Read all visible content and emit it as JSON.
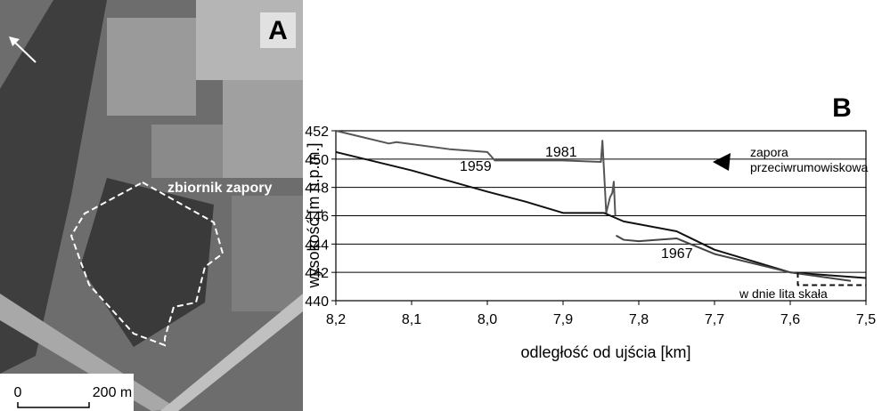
{
  "photo": {
    "label": "A",
    "annotation": "zbiornik zapory",
    "scale_start": "0",
    "scale_end": "200 m"
  },
  "chart_data": {
    "type": "line",
    "label": "B",
    "x_label": "odległość od ujścia [km]",
    "y_label": "wysokość [m n.p.m.]",
    "xlim": [
      8.2,
      7.5
    ],
    "xticks": [
      {
        "value": 8.2,
        "label": "8,2"
      },
      {
        "value": 8.1,
        "label": "8,1"
      },
      {
        "value": 8.0,
        "label": "8,0"
      },
      {
        "value": 7.9,
        "label": "7,9"
      },
      {
        "value": 7.8,
        "label": "7,8"
      },
      {
        "value": 7.7,
        "label": "7,7"
      },
      {
        "value": 7.6,
        "label": "7,6"
      },
      {
        "value": 7.5,
        "label": "7,5"
      }
    ],
    "ylim": [
      440,
      452
    ],
    "yticks": [
      440,
      442,
      444,
      446,
      448,
      450,
      452
    ],
    "grid": true,
    "annotation": [
      "zapora",
      "przeciwrumowiskowa"
    ],
    "series": [
      {
        "name": "1981",
        "color": "#555555",
        "dashed": false,
        "x": [
          8.2,
          8.13,
          8.12,
          8.05,
          8.0,
          7.99,
          7.9,
          7.85,
          7.848,
          7.843,
          7.838,
          7.835,
          7.833,
          7.831
        ],
        "values": [
          452.0,
          451.1,
          451.2,
          450.7,
          450.5,
          449.9,
          449.9,
          449.8,
          451.3,
          446.2,
          447.3,
          447.6,
          448.4,
          446.0
        ]
      },
      {
        "name": "1959",
        "color": "#111111",
        "dashed": false,
        "x": [
          8.2,
          8.1,
          8.0,
          7.95,
          7.9,
          7.846,
          7.82,
          7.75,
          7.7,
          7.65,
          7.6,
          7.5
        ],
        "values": [
          450.5,
          449.2,
          447.7,
          447.0,
          446.2,
          446.2,
          445.6,
          444.9,
          443.6,
          442.8,
          442.0,
          441.6
        ]
      },
      {
        "name": "1967",
        "color": "#444444",
        "dashed": false,
        "x": [
          7.83,
          7.82,
          7.8,
          7.75,
          7.7,
          7.6,
          7.52
        ],
        "values": [
          444.6,
          444.3,
          444.2,
          444.4,
          443.3,
          442.0,
          441.4
        ]
      },
      {
        "name": "w dnie lita skała",
        "color": "#111111",
        "dashed": true,
        "x": [
          7.59,
          7.59,
          7.5
        ],
        "values": [
          442.0,
          441.1,
          441.1
        ]
      }
    ]
  }
}
